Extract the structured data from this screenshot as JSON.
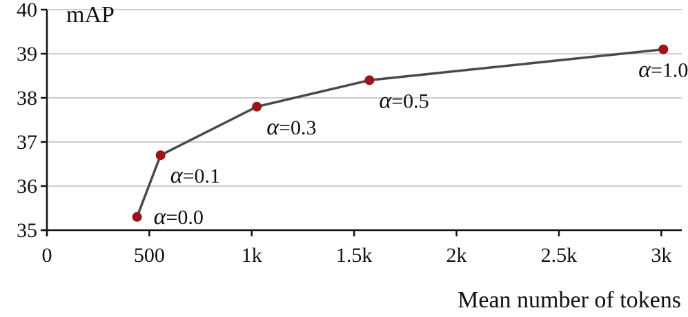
{
  "chart_data": {
    "type": "line",
    "title": "",
    "xlabel": "Mean number of tokens",
    "ylabel": "mAP",
    "xlim": [
      0,
      3100
    ],
    "ylim": [
      35,
      40
    ],
    "grid": {
      "y": true,
      "x": false
    },
    "x_ticks": [
      {
        "value": 0,
        "label": "0"
      },
      {
        "value": 500,
        "label": "500"
      },
      {
        "value": 1000,
        "label": "1k"
      },
      {
        "value": 1500,
        "label": "1.5k"
      },
      {
        "value": 2000,
        "label": "2k"
      },
      {
        "value": 2500,
        "label": "2.5k"
      },
      {
        "value": 3000,
        "label": "3k"
      }
    ],
    "y_ticks": [
      {
        "value": 35,
        "label": "35"
      },
      {
        "value": 36,
        "label": "36"
      },
      {
        "value": 37,
        "label": "37"
      },
      {
        "value": 38,
        "label": "38"
      },
      {
        "value": 39,
        "label": "39"
      },
      {
        "value": 40,
        "label": "40"
      }
    ],
    "series": [
      {
        "line_color": "#4a4a4a",
        "marker_color": "#a11212",
        "points": [
          {
            "x": 440,
            "y": 35.3,
            "label_symbol": "α",
            "label_text": "=0.0",
            "label_pos": "right"
          },
          {
            "x": 555,
            "y": 36.7,
            "label_symbol": "α",
            "label_text": "=0.1",
            "label_pos": "below-right"
          },
          {
            "x": 1025,
            "y": 37.8,
            "label_symbol": "α",
            "label_text": "=0.3",
            "label_pos": "below-right"
          },
          {
            "x": 1575,
            "y": 38.4,
            "label_symbol": "α",
            "label_text": "=0.5",
            "label_pos": "below-right"
          },
          {
            "x": 3010,
            "y": 39.1,
            "label_symbol": "α",
            "label_text": "=1.0",
            "label_pos": "below"
          }
        ]
      }
    ]
  }
}
